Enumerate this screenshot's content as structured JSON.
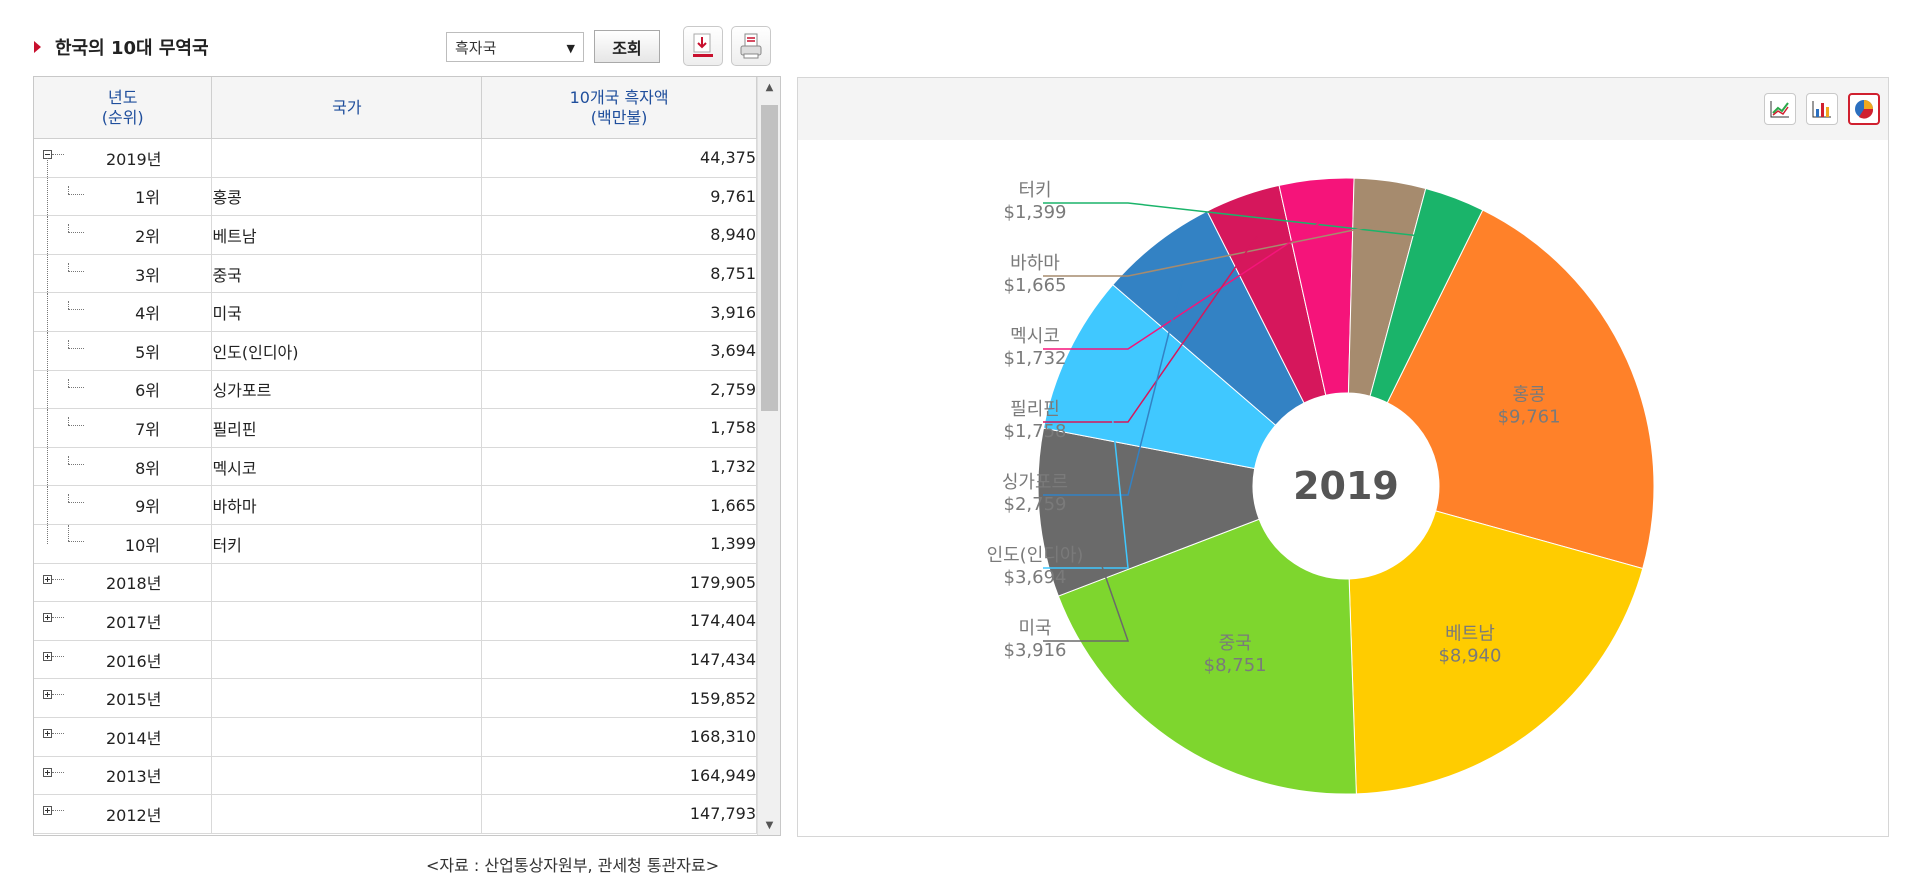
{
  "header": {
    "title": "한국의 10대 무역국",
    "select_value": "흑자국",
    "query_button": "조회"
  },
  "table": {
    "columns": [
      "년도\n(순위)",
      "국가",
      "10개국 흑자액\n(백만불)"
    ],
    "rows": [
      {
        "label": "2019년",
        "country": "",
        "value": "44,375",
        "type": "year-open"
      },
      {
        "label": "1위",
        "country": "홍콩",
        "value": "9,761",
        "type": "child"
      },
      {
        "label": "2위",
        "country": "베트남",
        "value": "8,940",
        "type": "child"
      },
      {
        "label": "3위",
        "country": "중국",
        "value": "8,751",
        "type": "child"
      },
      {
        "label": "4위",
        "country": "미국",
        "value": "3,916",
        "type": "child"
      },
      {
        "label": "5위",
        "country": "인도(인디아)",
        "value": "3,694",
        "type": "child"
      },
      {
        "label": "6위",
        "country": "싱가포르",
        "value": "2,759",
        "type": "child"
      },
      {
        "label": "7위",
        "country": "필리핀",
        "value": "1,758",
        "type": "child"
      },
      {
        "label": "8위",
        "country": "멕시코",
        "value": "1,732",
        "type": "child"
      },
      {
        "label": "9위",
        "country": "바하마",
        "value": "1,665",
        "type": "child"
      },
      {
        "label": "10위",
        "country": "터키",
        "value": "1,399",
        "type": "child-last"
      },
      {
        "label": "2018년",
        "country": "",
        "value": "179,905",
        "type": "year"
      },
      {
        "label": "2017년",
        "country": "",
        "value": "174,404",
        "type": "year"
      },
      {
        "label": "2016년",
        "country": "",
        "value": "147,434",
        "type": "year"
      },
      {
        "label": "2015년",
        "country": "",
        "value": "159,852",
        "type": "year"
      },
      {
        "label": "2014년",
        "country": "",
        "value": "168,310",
        "type": "year"
      },
      {
        "label": "2013년",
        "country": "",
        "value": "164,949",
        "type": "year"
      },
      {
        "label": "2012년",
        "country": "",
        "value": "147,793",
        "type": "year"
      }
    ]
  },
  "source": "<자료 : 산업통상자원부, 관세청 통관자료>",
  "chart_data": {
    "type": "pie",
    "center_label": "2019",
    "categories": [
      "홍콩",
      "베트남",
      "중국",
      "미국",
      "인도(인디아)",
      "싱가포르",
      "필리핀",
      "멕시코",
      "바하마",
      "터키"
    ],
    "values": [
      9761,
      8940,
      8751,
      3916,
      3694,
      2759,
      1758,
      1732,
      1665,
      1399
    ],
    "value_labels": [
      "$9,761",
      "$8,940",
      "$8,751",
      "$3,916",
      "$3,694",
      "$2,759",
      "$1,758",
      "$1,732",
      "$1,665",
      "$1,399"
    ],
    "colors": [
      "#ff8129",
      "#ffcc00",
      "#7ed62e",
      "#6a6a6a",
      "#40c8ff",
      "#3382c4",
      "#d6175c",
      "#f5147a",
      "#a68b6e",
      "#1ab46a"
    ]
  }
}
